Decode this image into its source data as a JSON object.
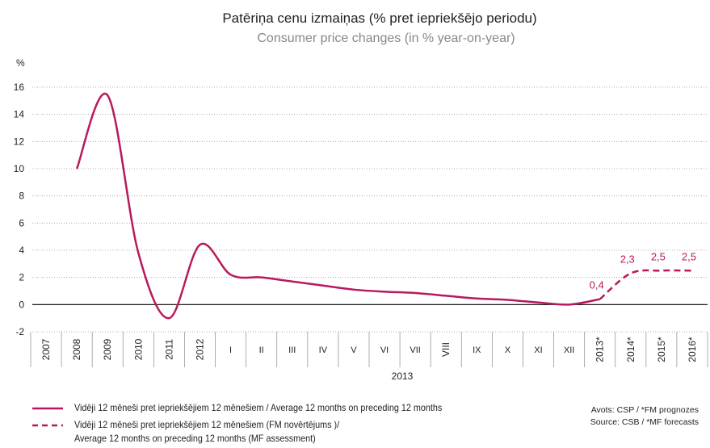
{
  "chart_data": {
    "type": "line",
    "title": "Patēriņa cenu izmaiņas (% pret iepriekšējo periodu)",
    "subtitle": "Consumer price changes (in % year-on-year)",
    "ylabel": "%",
    "categories": [
      "2007",
      "2008",
      "2009",
      "2010",
      "2011",
      "2012",
      "I",
      "II",
      "III",
      "IV",
      "V",
      "VI",
      "VII",
      "VIII",
      "IX",
      "X",
      "XI",
      "XII",
      "2013*",
      "2014*",
      "2015*",
      "2016*"
    ],
    "x_group_label": "2013",
    "series": [
      {
        "name": "Vidēji 12 mēneši pret iepriekšējiem 12 mēnešiem / Average 12 months on preceding 12 months",
        "color": "#b8195c",
        "dashed": false,
        "values": [
          null,
          10.0,
          15.4,
          3.8,
          -1.0,
          4.4,
          2.2,
          2.0,
          1.7,
          1.4,
          1.1,
          0.95,
          0.85,
          0.65,
          0.45,
          0.35,
          0.15,
          0.0,
          0.4,
          null,
          null,
          null
        ]
      },
      {
        "name": "Vidēji 12 mēneši pret iepriekšējiem 12 mēnešiem (FM novērtējums )/\nAverage 12 months on preceding 12 months (MF assessment)",
        "color": "#b8195c",
        "dashed": true,
        "values": [
          null,
          null,
          null,
          null,
          null,
          null,
          null,
          null,
          null,
          null,
          null,
          null,
          null,
          null,
          null,
          null,
          null,
          null,
          0.4,
          2.3,
          2.5,
          2.5
        ],
        "value_labels": [
          null,
          null,
          null,
          null,
          null,
          null,
          null,
          null,
          null,
          null,
          null,
          null,
          null,
          null,
          null,
          null,
          null,
          null,
          "0,4",
          "2,3",
          "2,5",
          "2,5"
        ]
      }
    ],
    "ylim": [
      -2,
      16
    ],
    "yticks": [
      -2,
      0,
      2,
      4,
      6,
      8,
      10,
      12,
      14,
      16
    ],
    "grid": true,
    "source": [
      "Avots: CSP / *FM prognozes",
      "Source: CSB / *MF forecasts"
    ]
  }
}
